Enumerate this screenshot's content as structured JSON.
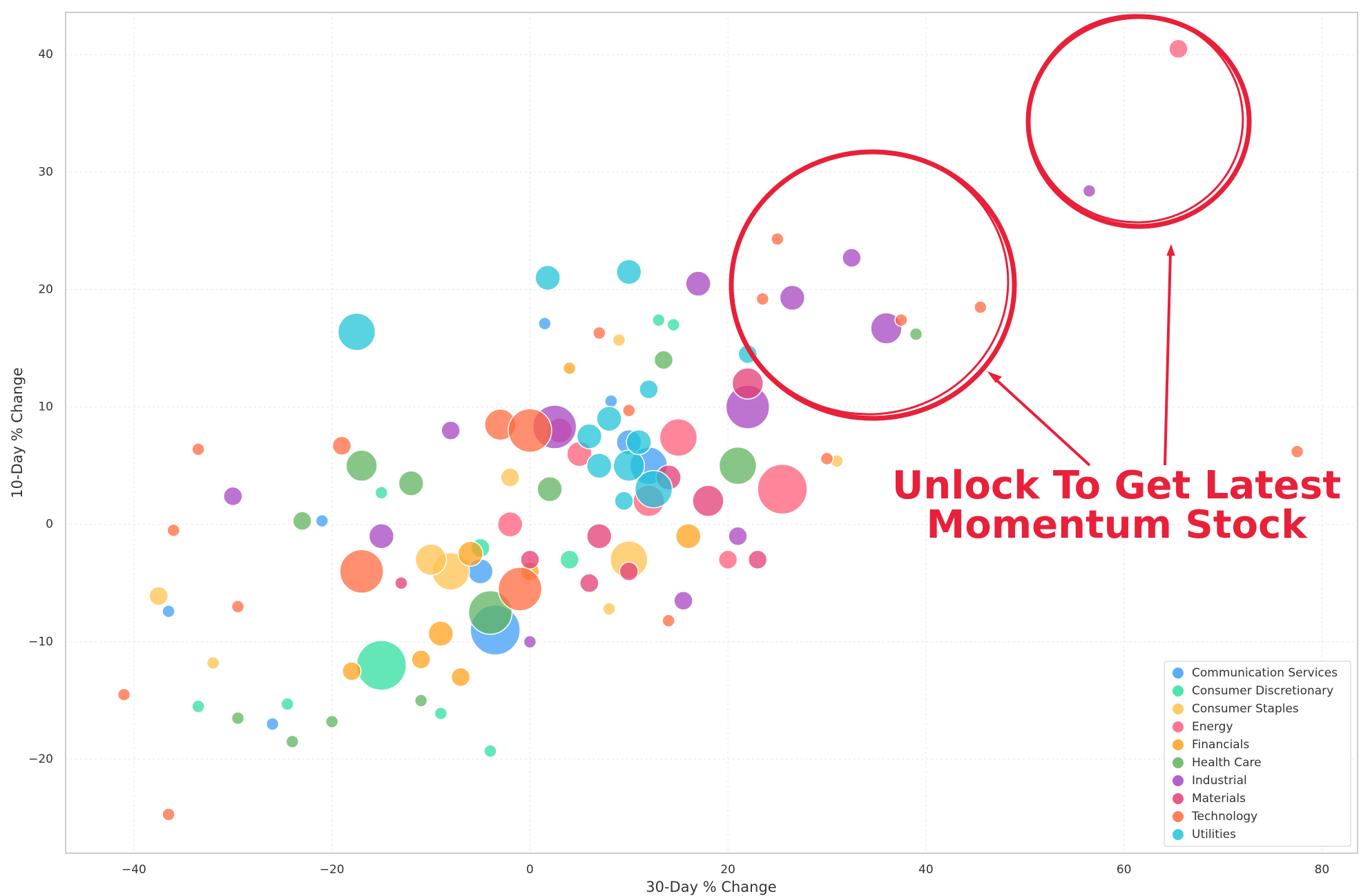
{
  "chart_data": {
    "type": "scatter",
    "xlabel": "30-Day % Change",
    "ylabel": "10-Day % Change",
    "xlim": [
      -46.9,
      83.6
    ],
    "ylim": [
      -28.0,
      43.6
    ],
    "xticks": [
      {
        "value": -40,
        "label": "−40"
      },
      {
        "value": -20,
        "label": "−20"
      },
      0,
      20,
      40,
      60,
      80
    ],
    "yticks": [
      {
        "value": -20,
        "label": "−20"
      },
      {
        "value": -10,
        "label": "−10"
      },
      0,
      10,
      20,
      30,
      40
    ],
    "grid": true,
    "legend": "lower right",
    "annotation": [
      "Unlock To Get Latest",
      "Momentum Stock"
    ],
    "series": [
      {
        "name": "Communication Services",
        "color": "#3d9df5",
        "x": [
          -36.5,
          -26,
          -21,
          1.5,
          8.2,
          -3.5,
          12,
          10,
          -5
        ],
        "y": [
          -7.4,
          -17,
          0.3,
          17.1,
          10.5,
          -9,
          5,
          7,
          -4
        ],
        "sizes": [
          2,
          2,
          2,
          2,
          2,
          8,
          6,
          4,
          4
        ]
      },
      {
        "name": "Consumer Discretionary",
        "color": "#2fdf9f",
        "x": [
          -15,
          -33.5,
          -24.5,
          -4,
          -9,
          14.5,
          13,
          -15,
          4,
          -5
        ],
        "y": [
          -12,
          -15.5,
          -15.3,
          -19.3,
          -16.1,
          17,
          17.4,
          2.7,
          -3,
          -2
        ],
        "sizes": [
          8,
          2,
          2,
          2,
          2,
          2,
          2,
          2,
          3,
          3
        ]
      },
      {
        "name": "Consumer Staples",
        "color": "#ffc14f",
        "x": [
          -37.5,
          -32,
          -8,
          -10,
          31,
          9,
          8,
          -2,
          10
        ],
        "y": [
          -6.1,
          -11.8,
          -4,
          -3,
          5.4,
          15.7,
          -7.2,
          4,
          -3
        ],
        "sizes": [
          3,
          2,
          6,
          5,
          2,
          2,
          2,
          3,
          6
        ]
      },
      {
        "name": "Energy",
        "color": "#ff5c7a",
        "x": [
          65.5,
          25.5,
          15,
          12,
          20,
          3,
          -2,
          5
        ],
        "y": [
          40.5,
          3,
          7.4,
          2,
          -3,
          8,
          0,
          6
        ],
        "sizes": [
          3,
          8,
          6,
          5,
          3,
          4,
          4,
          4
        ]
      },
      {
        "name": "Financials",
        "color": "#ffa11c",
        "x": [
          -9,
          -11,
          -6,
          -7,
          4,
          -18,
          0,
          16
        ],
        "y": [
          -9.3,
          -11.5,
          -2.5,
          -13,
          13.3,
          -12.5,
          -4,
          -1
        ],
        "sizes": [
          4,
          3,
          4,
          3,
          2,
          3,
          3,
          4
        ]
      },
      {
        "name": "Health Care",
        "color": "#5fb35f",
        "x": [
          -29.5,
          -20,
          -24,
          -17,
          -12,
          -23,
          -4,
          39,
          13.5,
          2,
          21,
          -11
        ],
        "y": [
          -16.5,
          -16.8,
          -18.5,
          5,
          3.5,
          0.3,
          -7.5,
          16.2,
          14,
          3,
          5,
          -15
        ],
        "sizes": [
          2,
          2,
          2,
          5,
          4,
          3,
          7,
          2,
          3,
          4,
          6,
          2
        ]
      },
      {
        "name": "Industrial",
        "color": "#a646c0",
        "x": [
          56.5,
          32.5,
          36,
          26.5,
          17,
          22,
          2.5,
          -15,
          -30,
          15.5,
          21,
          -8,
          0
        ],
        "y": [
          28.4,
          22.7,
          16.7,
          19.3,
          20.5,
          10,
          8.3,
          -1,
          2.4,
          -6.5,
          -1,
          8,
          -10
        ],
        "sizes": [
          2,
          3,
          5,
          4,
          4,
          7,
          7,
          4,
          3,
          3,
          3,
          3,
          2
        ]
      },
      {
        "name": "Materials",
        "color": "#e33c74",
        "x": [
          22,
          7,
          0,
          10,
          18,
          -13,
          23,
          6,
          14
        ],
        "y": [
          12,
          -1,
          -3,
          -4,
          2,
          -5,
          -3,
          -5,
          4
        ],
        "sizes": [
          5,
          4,
          3,
          3,
          5,
          2,
          3,
          3,
          4
        ]
      },
      {
        "name": "Technology",
        "color": "#ff6a3d",
        "x": [
          77.5,
          45.5,
          37.5,
          25,
          23.5,
          -33.5,
          -41,
          -36.5,
          -3,
          0,
          -1,
          -17,
          7,
          -19,
          -36,
          -29.5,
          14,
          10,
          30
        ],
        "y": [
          6.2,
          18.5,
          17.4,
          24.3,
          19.2,
          6.4,
          -14.5,
          -24.7,
          8.5,
          8,
          -5.5,
          -4,
          16.3,
          6.7,
          -0.5,
          -7,
          -8.2,
          9.7,
          5.6
        ],
        "sizes": [
          2,
          2,
          2,
          2,
          2,
          2,
          2,
          2,
          5,
          7,
          7,
          7,
          2,
          3,
          2,
          2,
          2,
          2,
          2
        ]
      },
      {
        "name": "Utilities",
        "color": "#22c3d8",
        "x": [
          -17.5,
          1.8,
          10,
          12,
          8,
          6,
          12.5,
          10,
          7,
          9.5,
          11,
          22
        ],
        "y": [
          16.4,
          21,
          21.5,
          11.5,
          9,
          7.5,
          3,
          5,
          5,
          2,
          7,
          14.5
        ],
        "sizes": [
          6,
          4,
          4,
          3,
          4,
          4,
          6,
          5,
          4,
          3,
          4,
          3
        ]
      }
    ]
  }
}
